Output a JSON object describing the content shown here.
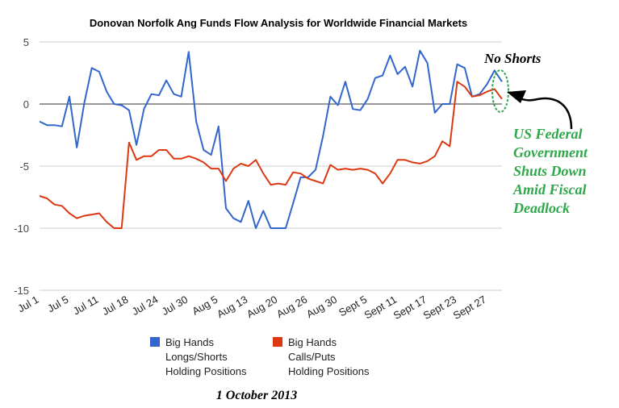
{
  "chart_data": {
    "type": "line",
    "title": "Donovan Norfolk Ang Funds Flow Analysis for Worldwide Financial Markets",
    "xlabel": "",
    "ylabel": "",
    "ylim": [
      -15,
      5
    ],
    "yticks": [
      5,
      0,
      -5,
      -10,
      -15
    ],
    "grid": true,
    "x_tick_labels": [
      "Jul 1",
      "Jul 5",
      "Jul 11",
      "Jul 18",
      "Jul 24",
      "Jul 30",
      "Aug 5",
      "Aug 13",
      "Aug 20",
      "Aug 26",
      "Aug 30",
      "Sept 5",
      "Sept 11",
      "Sept 17",
      "Sept 23",
      "Sept 27"
    ],
    "x_tick_index": [
      0,
      4,
      8,
      12,
      16,
      20,
      24,
      28,
      32,
      36,
      40,
      44,
      48,
      52,
      56,
      60
    ],
    "series": [
      {
        "name": "Big Hands Longs/Shorts Holding Positions",
        "legend_lines": [
          "Big Hands",
          "Longs/Shorts",
          "Holding Positions"
        ],
        "color": "#3366cc",
        "values": [
          -1.4,
          -1.7,
          -1.7,
          -1.8,
          0.6,
          -3.5,
          0.1,
          2.9,
          2.6,
          1.0,
          0.0,
          -0.1,
          -0.5,
          -3.3,
          -0.4,
          0.8,
          0.7,
          1.9,
          0.8,
          0.6,
          4.2,
          -1.4,
          -3.7,
          -4.1,
          -1.8,
          -8.4,
          -9.2,
          -9.5,
          -7.8,
          -10.0,
          -8.6,
          -10.0,
          -10.0,
          -10.0,
          -8.0,
          -5.9,
          -5.9,
          -5.3,
          -2.6,
          0.6,
          -0.1,
          1.8,
          -0.4,
          -0.5,
          0.4,
          2.1,
          2.3,
          3.9,
          2.4,
          3.0,
          1.4,
          4.3,
          3.3,
          -0.7,
          0.0,
          0.0,
          3.2,
          2.9,
          0.6,
          0.8,
          1.6,
          2.7,
          1.8
        ]
      },
      {
        "name": "Big Hands Calls/Puts Holding Positions",
        "legend_lines": [
          "Big Hands",
          "Calls/Puts",
          "Holding Positions"
        ],
        "color": "#dc3912",
        "values": [
          -7.4,
          -7.6,
          -8.1,
          -8.2,
          -8.8,
          -9.2,
          -9.0,
          -8.9,
          -8.8,
          -9.5,
          -10.0,
          -10.0,
          -3.1,
          -4.5,
          -4.2,
          -4.2,
          -3.7,
          -3.7,
          -4.4,
          -4.4,
          -4.2,
          -4.4,
          -4.7,
          -5.2,
          -5.2,
          -6.2,
          -5.2,
          -4.8,
          -5.0,
          -4.5,
          -5.6,
          -6.5,
          -6.4,
          -6.5,
          -5.5,
          -5.6,
          -6.0,
          -6.2,
          -6.4,
          -4.9,
          -5.3,
          -5.2,
          -5.3,
          -5.2,
          -5.3,
          -5.6,
          -6.4,
          -5.6,
          -4.5,
          -4.5,
          -4.7,
          -4.8,
          -4.6,
          -4.2,
          -3.0,
          -3.4,
          1.8,
          1.4,
          0.6,
          0.7,
          1.0,
          1.2,
          0.4
        ]
      }
    ],
    "legend_position": "bottom",
    "annotations": {
      "no_shorts": "No Shorts",
      "event_lines": [
        "US Federal",
        "Government",
        "Shuts Down",
        "Amid Fiscal",
        "Deadlock"
      ],
      "date": "1 October 2013",
      "ellipse_color": "#2ea84a",
      "arrow_color": "#000000"
    }
  }
}
